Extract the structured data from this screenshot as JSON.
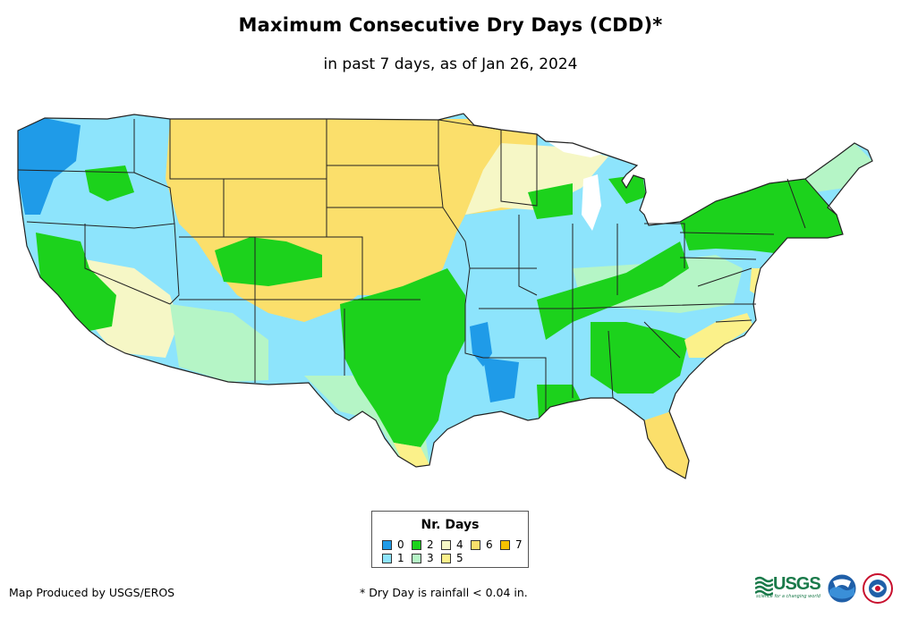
{
  "title": "Maximum Consecutive Dry Days (CDD)*",
  "subtitle": "in past 7 days, as of Jan 26, 2024",
  "legend": {
    "title": "Nr. Days",
    "items": [
      {
        "label": "0",
        "color": "#1f9be8"
      },
      {
        "label": "1",
        "color": "#8de4fc"
      },
      {
        "label": "2",
        "color": "#1cd21c"
      },
      {
        "label": "3",
        "color": "#b5f5c6"
      },
      {
        "label": "4",
        "color": "#f6f7c6"
      },
      {
        "label": "5",
        "color": "#fbf18a"
      },
      {
        "label": "6",
        "color": "#fbdf6b"
      },
      {
        "label": "7",
        "color": "#f6c100"
      }
    ]
  },
  "credit": "Map Produced by USGS/EROS",
  "footnote": "* Dry Day is rainfall < 0.04 in.",
  "logos": {
    "usgs": "USGS",
    "usgs_tagline": "science for a changing world"
  },
  "colors": {
    "state_border": "#222222",
    "background": "#ffffff"
  }
}
